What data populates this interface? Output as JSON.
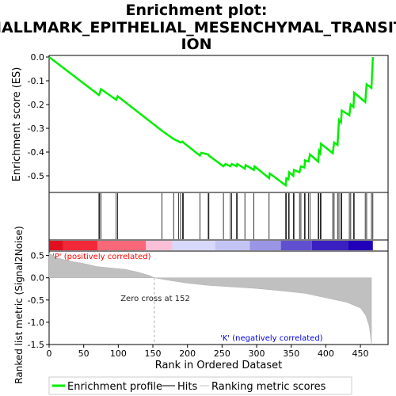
{
  "title_line1": "Enrichment plot:",
  "title_line2": "HALLMARK_EPITHELIAL_MESENCHYMAL_TRANSIT",
  "title_line3": "ION",
  "top_ylabel": "Enrichment score (ES)",
  "bottom_ylabel": "Ranked list metric (Signal2Noise)",
  "xlabel": "Rank in Ordered Dataset",
  "annotation_pos": "'P' (positively correlated)",
  "annotation_neg": "'K' (negatively correlated)",
  "zero_cross_label": "Zero cross at 152",
  "colors": {
    "es_line": "#00ee00",
    "pos_text": "#ff0000",
    "neg_text": "#0000ee"
  },
  "legend": [
    {
      "label": "Enrichment profile",
      "color": "#00ee00"
    },
    {
      "label": "Hits",
      "color": "#000000"
    },
    {
      "label": "Ranking metric scores",
      "color": "#c0c0c0"
    }
  ],
  "chart_data": {
    "type": "line",
    "es_panel": {
      "ylim": [
        -0.57,
        0.0
      ],
      "yticks": [
        0.0,
        -0.1,
        -0.2,
        -0.3,
        -0.4,
        -0.5
      ],
      "ytick_labels": [
        "0.0",
        "-0.1",
        "-0.2",
        "-0.3",
        "-0.4",
        "-0.5"
      ],
      "points": [
        [
          0,
          0
        ],
        [
          72,
          -0.16
        ],
        [
          73,
          -0.155
        ],
        [
          75,
          -0.135
        ],
        [
          97,
          -0.18
        ],
        [
          99,
          -0.165
        ],
        [
          163,
          -0.31
        ],
        [
          180,
          -0.345
        ],
        [
          187,
          -0.355
        ],
        [
          190,
          -0.36
        ],
        [
          193,
          -0.356
        ],
        [
          194,
          -0.36
        ],
        [
          218,
          -0.415
        ],
        [
          220,
          -0.403
        ],
        [
          230,
          -0.41
        ],
        [
          231,
          -0.415
        ],
        [
          252,
          -0.46
        ],
        [
          255,
          -0.45
        ],
        [
          262,
          -0.46
        ],
        [
          264,
          -0.45
        ],
        [
          271,
          -0.46
        ],
        [
          272,
          -0.45
        ],
        [
          283,
          -0.47
        ],
        [
          284,
          -0.455
        ],
        [
          296,
          -0.475
        ],
        [
          297,
          -0.46
        ],
        [
          318,
          -0.51
        ],
        [
          319,
          -0.49
        ],
        [
          342,
          -0.54
        ],
        [
          343,
          -0.51
        ],
        [
          346,
          -0.515
        ],
        [
          347,
          -0.485
        ],
        [
          353,
          -0.5
        ],
        [
          354,
          -0.475
        ],
        [
          362,
          -0.485
        ],
        [
          364,
          -0.46
        ],
        [
          369,
          -0.465
        ],
        [
          370,
          -0.435
        ],
        [
          375,
          -0.44
        ],
        [
          377,
          -0.41
        ],
        [
          389,
          -0.44
        ],
        [
          390,
          -0.395
        ],
        [
          392,
          -0.405
        ],
        [
          393,
          -0.365
        ],
        [
          410,
          -0.405
        ],
        [
          412,
          -0.36
        ],
        [
          417,
          -0.37
        ],
        [
          419,
          -0.265
        ],
        [
          422,
          -0.275
        ],
        [
          423,
          -0.225
        ],
        [
          434,
          -0.245
        ],
        [
          436,
          -0.2
        ],
        [
          440,
          -0.21
        ],
        [
          441,
          -0.15
        ],
        [
          457,
          -0.19
        ],
        [
          459,
          -0.115
        ],
        [
          466,
          -0.13
        ],
        [
          468,
          0.0
        ]
      ]
    },
    "hits": [
      72,
      73,
      75,
      97,
      99,
      163,
      180,
      187,
      190,
      193,
      194,
      218,
      230,
      231,
      252,
      262,
      264,
      271,
      272,
      283,
      296,
      318,
      342,
      343,
      346,
      347,
      353,
      354,
      362,
      364,
      369,
      370,
      375,
      377,
      389,
      390,
      392,
      393,
      410,
      412,
      417,
      419,
      422,
      423,
      434,
      436,
      440,
      441,
      457,
      459,
      466,
      468
    ],
    "heatmap_bar": {
      "from": 0,
      "to": 468,
      "description_colors": [
        "#e81a28",
        "#fbc0d8",
        "#cfcff8",
        "#3314c0"
      ]
    },
    "ranking_panel": {
      "ylim": [
        -1.5,
        0.6
      ],
      "yticks": [
        0.5,
        0.0,
        -0.5,
        -1.0,
        -1.5
      ],
      "ytick_labels": [
        "0.5",
        "0.0",
        "-0.5",
        "-1.0",
        "-1.5"
      ],
      "zero_cross": 152,
      "curve": [
        [
          0,
          0.55
        ],
        [
          10,
          0.46
        ],
        [
          20,
          0.41
        ],
        [
          35,
          0.36
        ],
        [
          50,
          0.32
        ],
        [
          70,
          0.25
        ],
        [
          90,
          0.22
        ],
        [
          110,
          0.19
        ],
        [
          130,
          0.12
        ],
        [
          145,
          0.05
        ],
        [
          152,
          0.0
        ],
        [
          170,
          -0.05
        ],
        [
          200,
          -0.12
        ],
        [
          230,
          -0.17
        ],
        [
          260,
          -0.2
        ],
        [
          300,
          -0.24
        ],
        [
          340,
          -0.3
        ],
        [
          370,
          -0.35
        ],
        [
          400,
          -0.45
        ],
        [
          430,
          -0.55
        ],
        [
          450,
          -0.68
        ],
        [
          458,
          -0.85
        ],
        [
          463,
          -1.1
        ],
        [
          466,
          -1.5
        ]
      ]
    },
    "xlim": [
      0,
      490
    ],
    "xticks": [
      0,
      50,
      100,
      150,
      200,
      250,
      300,
      350,
      400,
      450
    ],
    "xtick_labels": [
      "0",
      "50",
      "100",
      "150",
      "200",
      "250",
      "300",
      "350",
      "400",
      "450"
    ]
  }
}
